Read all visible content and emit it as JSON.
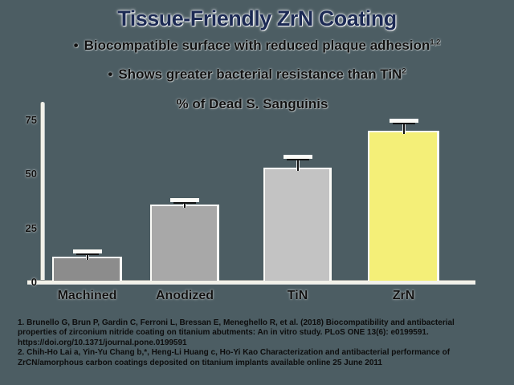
{
  "slide": {
    "title": "Tissue-Friendly ZrN Coating",
    "bullets": [
      {
        "marker": "•",
        "text": "Biocompatible surface with reduced plaque adhesion",
        "sup": "1,2"
      },
      {
        "marker": "•",
        "text": "Shows greater bacterial resistance than TiN",
        "sup": "2"
      }
    ]
  },
  "chart_data": {
    "type": "bar",
    "title": "% of Dead S. Sanguinis",
    "categories": [
      "Machined",
      "Anodized",
      "TiN",
      "ZrN"
    ],
    "values": [
      12,
      36,
      53,
      70
    ],
    "error_upper": [
      1.5,
      1,
      4,
      4
    ],
    "bar_colors": [
      "#8c8c8c",
      "#a8a8a8",
      "#c3c3c3",
      "#f4ef78"
    ],
    "yticks": [
      0,
      25,
      50,
      75
    ],
    "ylim": [
      0,
      80
    ],
    "xlabel": "",
    "ylabel": "",
    "grid": false,
    "legend": "none"
  },
  "footnotes": [
    "1. Brunello G, Brun P, Gardin C, Ferroni L, Bressan E, Meneghello R, et al. (2018) Biocompatibility and antibacterial",
    "properties of zirconium nitride coating on titanium abutments: An in vitro study. PLoS ONE 13(6): e0199591.",
    "https://doi.org/10.1371/journal.pone.0199591",
    "2. Chih-Ho Lai a, Yin-Yu Chang b,*, Heng-Li Huang c, Ho-Yi Kao Characterization and antibacterial performance of",
    "ZrCN/amorphous carbon coatings deposited on titanium implants available online 25 June 2011"
  ],
  "colors": {
    "background": "#4c5d63",
    "title_text": "#1c2a54",
    "body_text": "#101010"
  }
}
